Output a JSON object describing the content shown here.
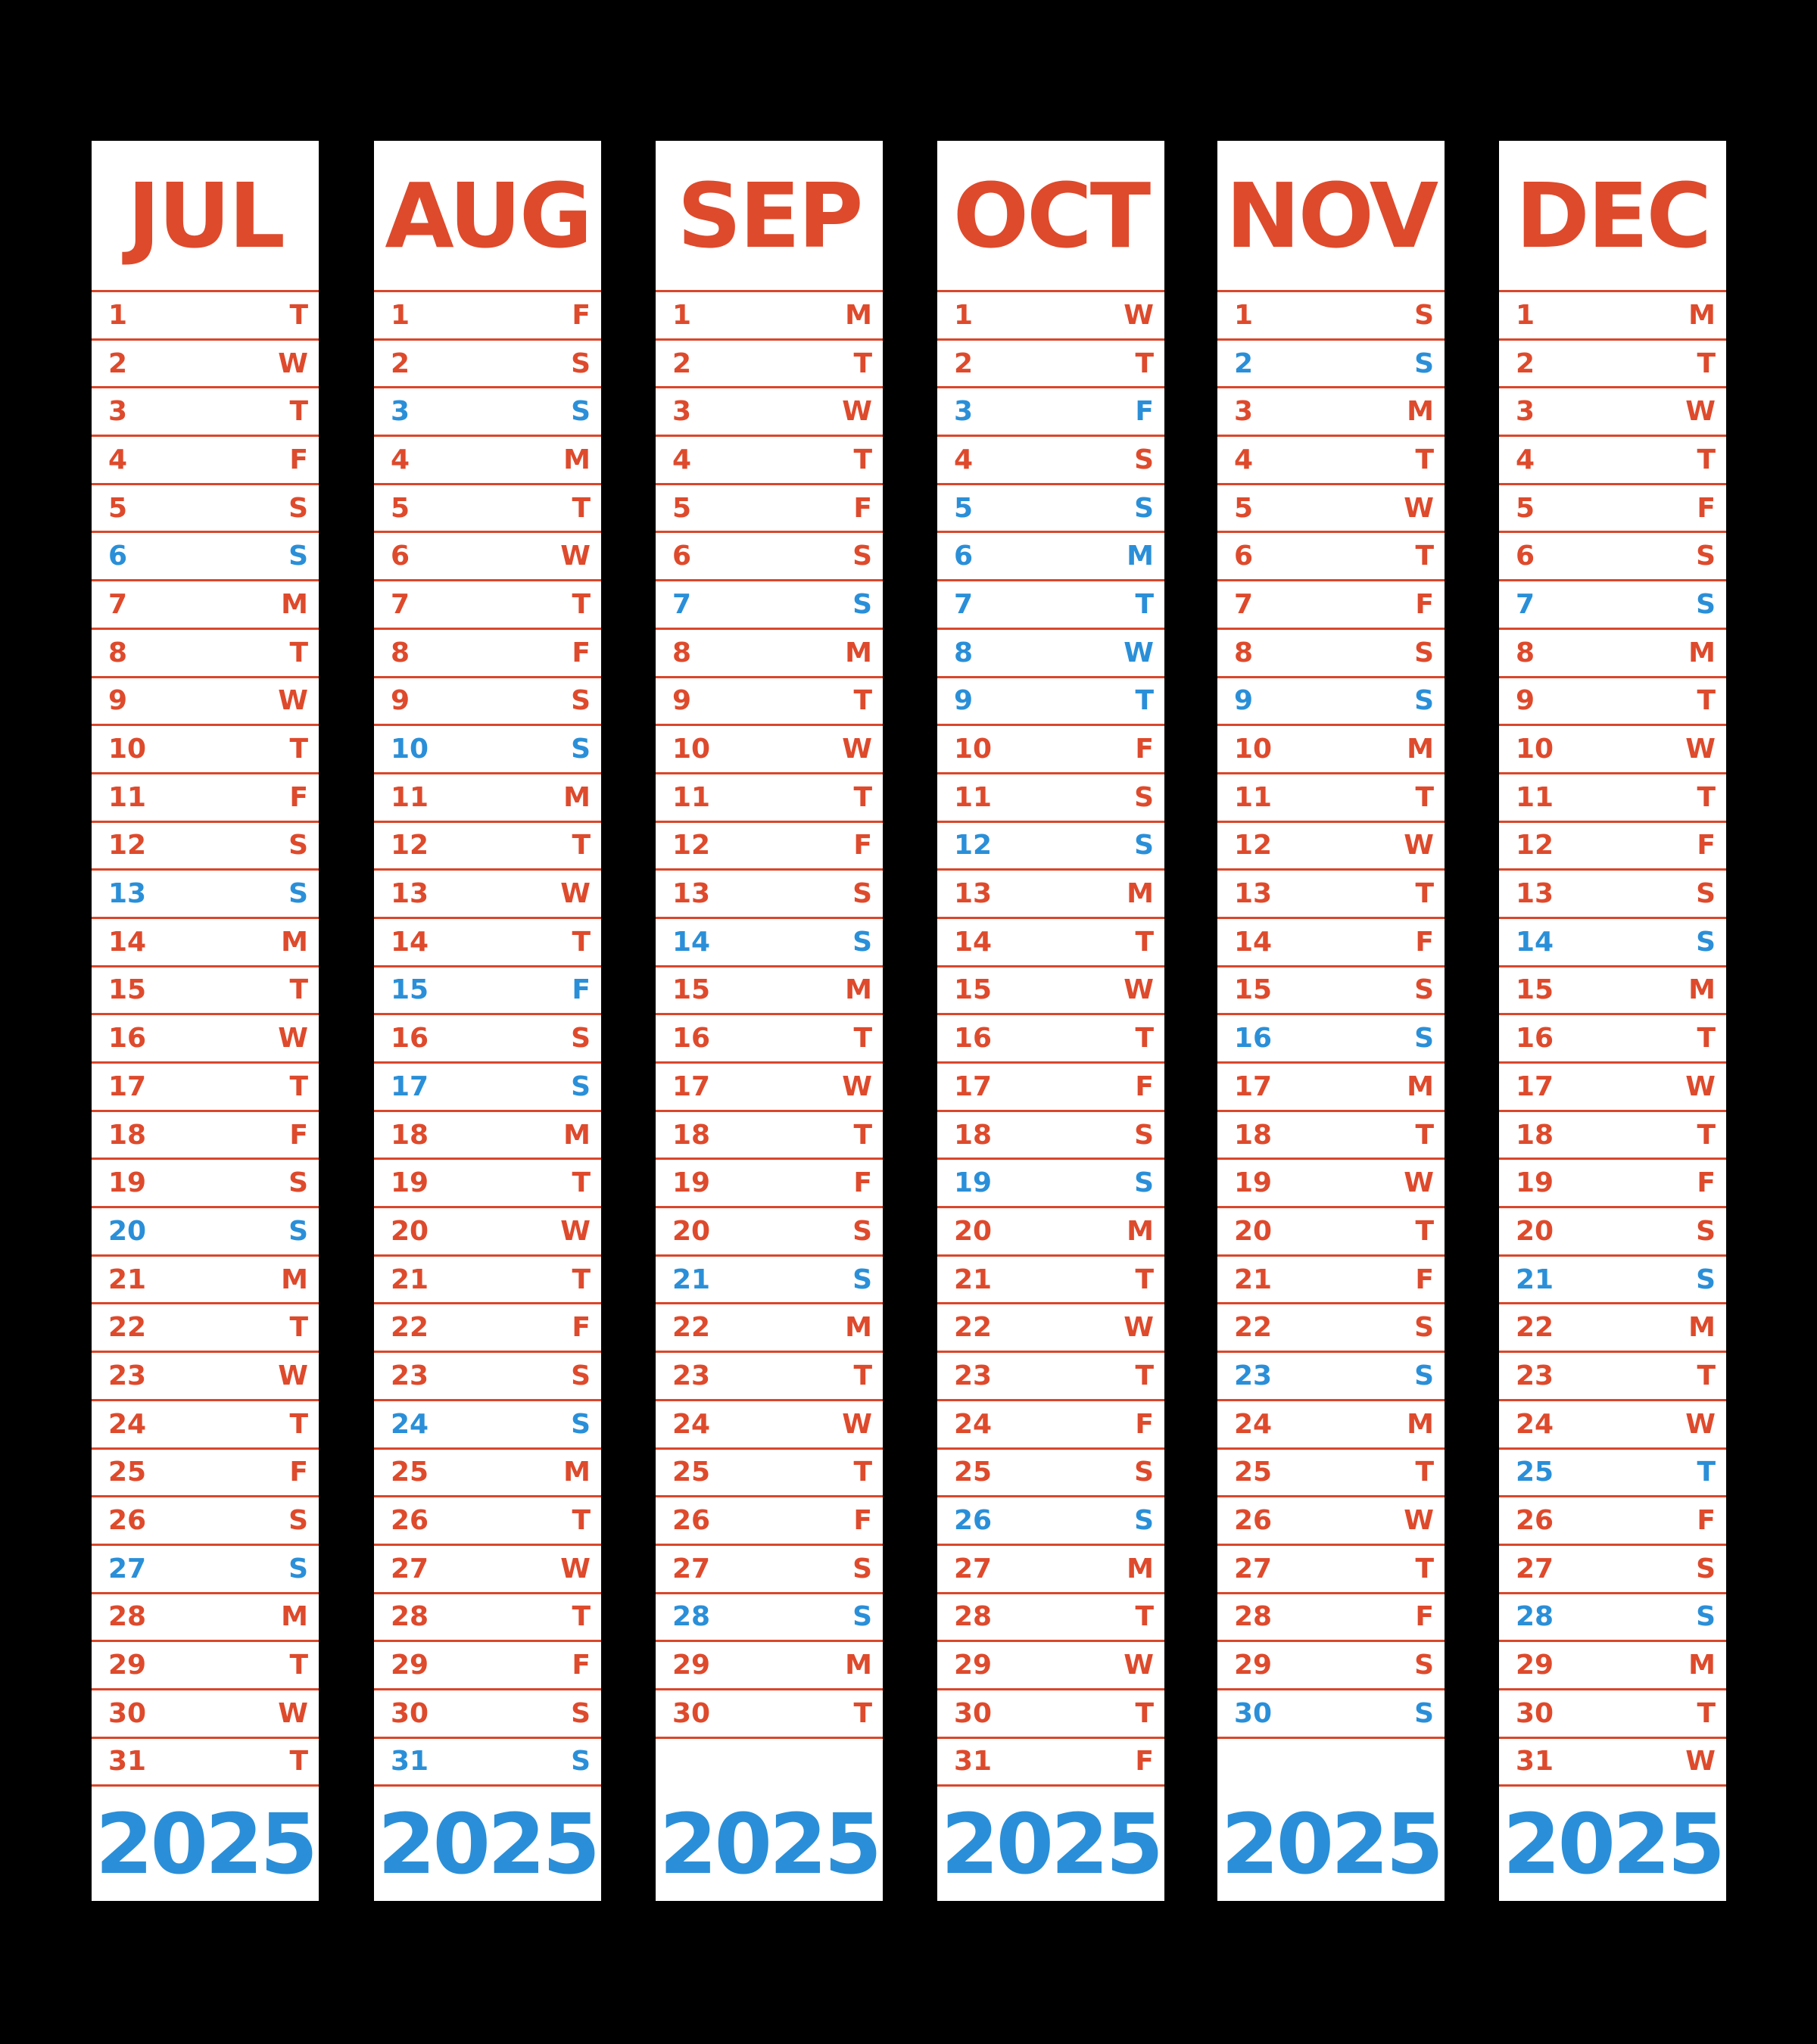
{
  "colors": {
    "red": "#de4a2c",
    "blue": "#2a8fd8",
    "rule": "#d9472b",
    "background": "#000000",
    "paper": "#ffffff"
  },
  "months": [
    {
      "name": "JUL",
      "year": "2025",
      "days": [
        {
          "n": "1",
          "d": "T",
          "s": false
        },
        {
          "n": "2",
          "d": "W",
          "s": false
        },
        {
          "n": "3",
          "d": "T",
          "s": false
        },
        {
          "n": "4",
          "d": "F",
          "s": false
        },
        {
          "n": "5",
          "d": "S",
          "s": false
        },
        {
          "n": "6",
          "d": "S",
          "s": true
        },
        {
          "n": "7",
          "d": "M",
          "s": false
        },
        {
          "n": "8",
          "d": "T",
          "s": false
        },
        {
          "n": "9",
          "d": "W",
          "s": false
        },
        {
          "n": "10",
          "d": "T",
          "s": false
        },
        {
          "n": "11",
          "d": "F",
          "s": false
        },
        {
          "n": "12",
          "d": "S",
          "s": false
        },
        {
          "n": "13",
          "d": "S",
          "s": true
        },
        {
          "n": "14",
          "d": "M",
          "s": false
        },
        {
          "n": "15",
          "d": "T",
          "s": false
        },
        {
          "n": "16",
          "d": "W",
          "s": false
        },
        {
          "n": "17",
          "d": "T",
          "s": false
        },
        {
          "n": "18",
          "d": "F",
          "s": false
        },
        {
          "n": "19",
          "d": "S",
          "s": false
        },
        {
          "n": "20",
          "d": "S",
          "s": true
        },
        {
          "n": "21",
          "d": "M",
          "s": false
        },
        {
          "n": "22",
          "d": "T",
          "s": false
        },
        {
          "n": "23",
          "d": "W",
          "s": false
        },
        {
          "n": "24",
          "d": "T",
          "s": false
        },
        {
          "n": "25",
          "d": "F",
          "s": false
        },
        {
          "n": "26",
          "d": "S",
          "s": false
        },
        {
          "n": "27",
          "d": "S",
          "s": true
        },
        {
          "n": "28",
          "d": "M",
          "s": false
        },
        {
          "n": "29",
          "d": "T",
          "s": false
        },
        {
          "n": "30",
          "d": "W",
          "s": false
        },
        {
          "n": "31",
          "d": "T",
          "s": false
        }
      ]
    },
    {
      "name": "AUG",
      "year": "2025",
      "days": [
        {
          "n": "1",
          "d": "F",
          "s": false
        },
        {
          "n": "2",
          "d": "S",
          "s": false
        },
        {
          "n": "3",
          "d": "S",
          "s": true
        },
        {
          "n": "4",
          "d": "M",
          "s": false
        },
        {
          "n": "5",
          "d": "T",
          "s": false
        },
        {
          "n": "6",
          "d": "W",
          "s": false
        },
        {
          "n": "7",
          "d": "T",
          "s": false
        },
        {
          "n": "8",
          "d": "F",
          "s": false
        },
        {
          "n": "9",
          "d": "S",
          "s": false
        },
        {
          "n": "10",
          "d": "S",
          "s": true
        },
        {
          "n": "11",
          "d": "M",
          "s": false
        },
        {
          "n": "12",
          "d": "T",
          "s": false
        },
        {
          "n": "13",
          "d": "W",
          "s": false
        },
        {
          "n": "14",
          "d": "T",
          "s": false
        },
        {
          "n": "15",
          "d": "F",
          "s": true
        },
        {
          "n": "16",
          "d": "S",
          "s": false
        },
        {
          "n": "17",
          "d": "S",
          "s": true
        },
        {
          "n": "18",
          "d": "M",
          "s": false
        },
        {
          "n": "19",
          "d": "T",
          "s": false
        },
        {
          "n": "20",
          "d": "W",
          "s": false
        },
        {
          "n": "21",
          "d": "T",
          "s": false
        },
        {
          "n": "22",
          "d": "F",
          "s": false
        },
        {
          "n": "23",
          "d": "S",
          "s": false
        },
        {
          "n": "24",
          "d": "S",
          "s": true
        },
        {
          "n": "25",
          "d": "M",
          "s": false
        },
        {
          "n": "26",
          "d": "T",
          "s": false
        },
        {
          "n": "27",
          "d": "W",
          "s": false
        },
        {
          "n": "28",
          "d": "T",
          "s": false
        },
        {
          "n": "29",
          "d": "F",
          "s": false
        },
        {
          "n": "30",
          "d": "S",
          "s": false
        },
        {
          "n": "31",
          "d": "S",
          "s": true
        }
      ]
    },
    {
      "name": "SEP",
      "year": "2025",
      "days": [
        {
          "n": "1",
          "d": "M",
          "s": false
        },
        {
          "n": "2",
          "d": "T",
          "s": false
        },
        {
          "n": "3",
          "d": "W",
          "s": false
        },
        {
          "n": "4",
          "d": "T",
          "s": false
        },
        {
          "n": "5",
          "d": "F",
          "s": false
        },
        {
          "n": "6",
          "d": "S",
          "s": false
        },
        {
          "n": "7",
          "d": "S",
          "s": true
        },
        {
          "n": "8",
          "d": "M",
          "s": false
        },
        {
          "n": "9",
          "d": "T",
          "s": false
        },
        {
          "n": "10",
          "d": "W",
          "s": false
        },
        {
          "n": "11",
          "d": "T",
          "s": false
        },
        {
          "n": "12",
          "d": "F",
          "s": false
        },
        {
          "n": "13",
          "d": "S",
          "s": false
        },
        {
          "n": "14",
          "d": "S",
          "s": true
        },
        {
          "n": "15",
          "d": "M",
          "s": false
        },
        {
          "n": "16",
          "d": "T",
          "s": false
        },
        {
          "n": "17",
          "d": "W",
          "s": false
        },
        {
          "n": "18",
          "d": "T",
          "s": false
        },
        {
          "n": "19",
          "d": "F",
          "s": false
        },
        {
          "n": "20",
          "d": "S",
          "s": false
        },
        {
          "n": "21",
          "d": "S",
          "s": true
        },
        {
          "n": "22",
          "d": "M",
          "s": false
        },
        {
          "n": "23",
          "d": "T",
          "s": false
        },
        {
          "n": "24",
          "d": "W",
          "s": false
        },
        {
          "n": "25",
          "d": "T",
          "s": false
        },
        {
          "n": "26",
          "d": "F",
          "s": false
        },
        {
          "n": "27",
          "d": "S",
          "s": false
        },
        {
          "n": "28",
          "d": "S",
          "s": true
        },
        {
          "n": "29",
          "d": "M",
          "s": false
        },
        {
          "n": "30",
          "d": "T",
          "s": false
        }
      ]
    },
    {
      "name": "OCT",
      "year": "2025",
      "days": [
        {
          "n": "1",
          "d": "W",
          "s": false
        },
        {
          "n": "2",
          "d": "T",
          "s": false
        },
        {
          "n": "3",
          "d": "F",
          "s": true
        },
        {
          "n": "4",
          "d": "S",
          "s": false
        },
        {
          "n": "5",
          "d": "S",
          "s": true
        },
        {
          "n": "6",
          "d": "M",
          "s": true
        },
        {
          "n": "7",
          "d": "T",
          "s": true
        },
        {
          "n": "8",
          "d": "W",
          "s": true
        },
        {
          "n": "9",
          "d": "T",
          "s": true
        },
        {
          "n": "10",
          "d": "F",
          "s": false
        },
        {
          "n": "11",
          "d": "S",
          "s": false
        },
        {
          "n": "12",
          "d": "S",
          "s": true
        },
        {
          "n": "13",
          "d": "M",
          "s": false
        },
        {
          "n": "14",
          "d": "T",
          "s": false
        },
        {
          "n": "15",
          "d": "W",
          "s": false
        },
        {
          "n": "16",
          "d": "T",
          "s": false
        },
        {
          "n": "17",
          "d": "F",
          "s": false
        },
        {
          "n": "18",
          "d": "S",
          "s": false
        },
        {
          "n": "19",
          "d": "S",
          "s": true
        },
        {
          "n": "20",
          "d": "M",
          "s": false
        },
        {
          "n": "21",
          "d": "T",
          "s": false
        },
        {
          "n": "22",
          "d": "W",
          "s": false
        },
        {
          "n": "23",
          "d": "T",
          "s": false
        },
        {
          "n": "24",
          "d": "F",
          "s": false
        },
        {
          "n": "25",
          "d": "S",
          "s": false
        },
        {
          "n": "26",
          "d": "S",
          "s": true
        },
        {
          "n": "27",
          "d": "M",
          "s": false
        },
        {
          "n": "28",
          "d": "T",
          "s": false
        },
        {
          "n": "29",
          "d": "W",
          "s": false
        },
        {
          "n": "30",
          "d": "T",
          "s": false
        },
        {
          "n": "31",
          "d": "F",
          "s": false
        }
      ]
    },
    {
      "name": "NOV",
      "year": "2025",
      "days": [
        {
          "n": "1",
          "d": "S",
          "s": false
        },
        {
          "n": "2",
          "d": "S",
          "s": true
        },
        {
          "n": "3",
          "d": "M",
          "s": false
        },
        {
          "n": "4",
          "d": "T",
          "s": false
        },
        {
          "n": "5",
          "d": "W",
          "s": false
        },
        {
          "n": "6",
          "d": "T",
          "s": false
        },
        {
          "n": "7",
          "d": "F",
          "s": false
        },
        {
          "n": "8",
          "d": "S",
          "s": false
        },
        {
          "n": "9",
          "d": "S",
          "s": true
        },
        {
          "n": "10",
          "d": "M",
          "s": false
        },
        {
          "n": "11",
          "d": "T",
          "s": false
        },
        {
          "n": "12",
          "d": "W",
          "s": false
        },
        {
          "n": "13",
          "d": "T",
          "s": false
        },
        {
          "n": "14",
          "d": "F",
          "s": false
        },
        {
          "n": "15",
          "d": "S",
          "s": false
        },
        {
          "n": "16",
          "d": "S",
          "s": true
        },
        {
          "n": "17",
          "d": "M",
          "s": false
        },
        {
          "n": "18",
          "d": "T",
          "s": false
        },
        {
          "n": "19",
          "d": "W",
          "s": false
        },
        {
          "n": "20",
          "d": "T",
          "s": false
        },
        {
          "n": "21",
          "d": "F",
          "s": false
        },
        {
          "n": "22",
          "d": "S",
          "s": false
        },
        {
          "n": "23",
          "d": "S",
          "s": true
        },
        {
          "n": "24",
          "d": "M",
          "s": false
        },
        {
          "n": "25",
          "d": "T",
          "s": false
        },
        {
          "n": "26",
          "d": "W",
          "s": false
        },
        {
          "n": "27",
          "d": "T",
          "s": false
        },
        {
          "n": "28",
          "d": "F",
          "s": false
        },
        {
          "n": "29",
          "d": "S",
          "s": false
        },
        {
          "n": "30",
          "d": "S",
          "s": true
        }
      ]
    },
    {
      "name": "DEC",
      "year": "2025",
      "days": [
        {
          "n": "1",
          "d": "M",
          "s": false
        },
        {
          "n": "2",
          "d": "T",
          "s": false
        },
        {
          "n": "3",
          "d": "W",
          "s": false
        },
        {
          "n": "4",
          "d": "T",
          "s": false
        },
        {
          "n": "5",
          "d": "F",
          "s": false
        },
        {
          "n": "6",
          "d": "S",
          "s": false
        },
        {
          "n": "7",
          "d": "S",
          "s": true
        },
        {
          "n": "8",
          "d": "M",
          "s": false
        },
        {
          "n": "9",
          "d": "T",
          "s": false
        },
        {
          "n": "10",
          "d": "W",
          "s": false
        },
        {
          "n": "11",
          "d": "T",
          "s": false
        },
        {
          "n": "12",
          "d": "F",
          "s": false
        },
        {
          "n": "13",
          "d": "S",
          "s": false
        },
        {
          "n": "14",
          "d": "S",
          "s": true
        },
        {
          "n": "15",
          "d": "M",
          "s": false
        },
        {
          "n": "16",
          "d": "T",
          "s": false
        },
        {
          "n": "17",
          "d": "W",
          "s": false
        },
        {
          "n": "18",
          "d": "T",
          "s": false
        },
        {
          "n": "19",
          "d": "F",
          "s": false
        },
        {
          "n": "20",
          "d": "S",
          "s": false
        },
        {
          "n": "21",
          "d": "S",
          "s": true
        },
        {
          "n": "22",
          "d": "M",
          "s": false
        },
        {
          "n": "23",
          "d": "T",
          "s": false
        },
        {
          "n": "24",
          "d": "W",
          "s": false
        },
        {
          "n": "25",
          "d": "T",
          "s": true
        },
        {
          "n": "26",
          "d": "F",
          "s": false
        },
        {
          "n": "27",
          "d": "S",
          "s": false
        },
        {
          "n": "28",
          "d": "S",
          "s": true
        },
        {
          "n": "29",
          "d": "M",
          "s": false
        },
        {
          "n": "30",
          "d": "T",
          "s": false
        },
        {
          "n": "31",
          "d": "W",
          "s": false
        }
      ]
    }
  ]
}
